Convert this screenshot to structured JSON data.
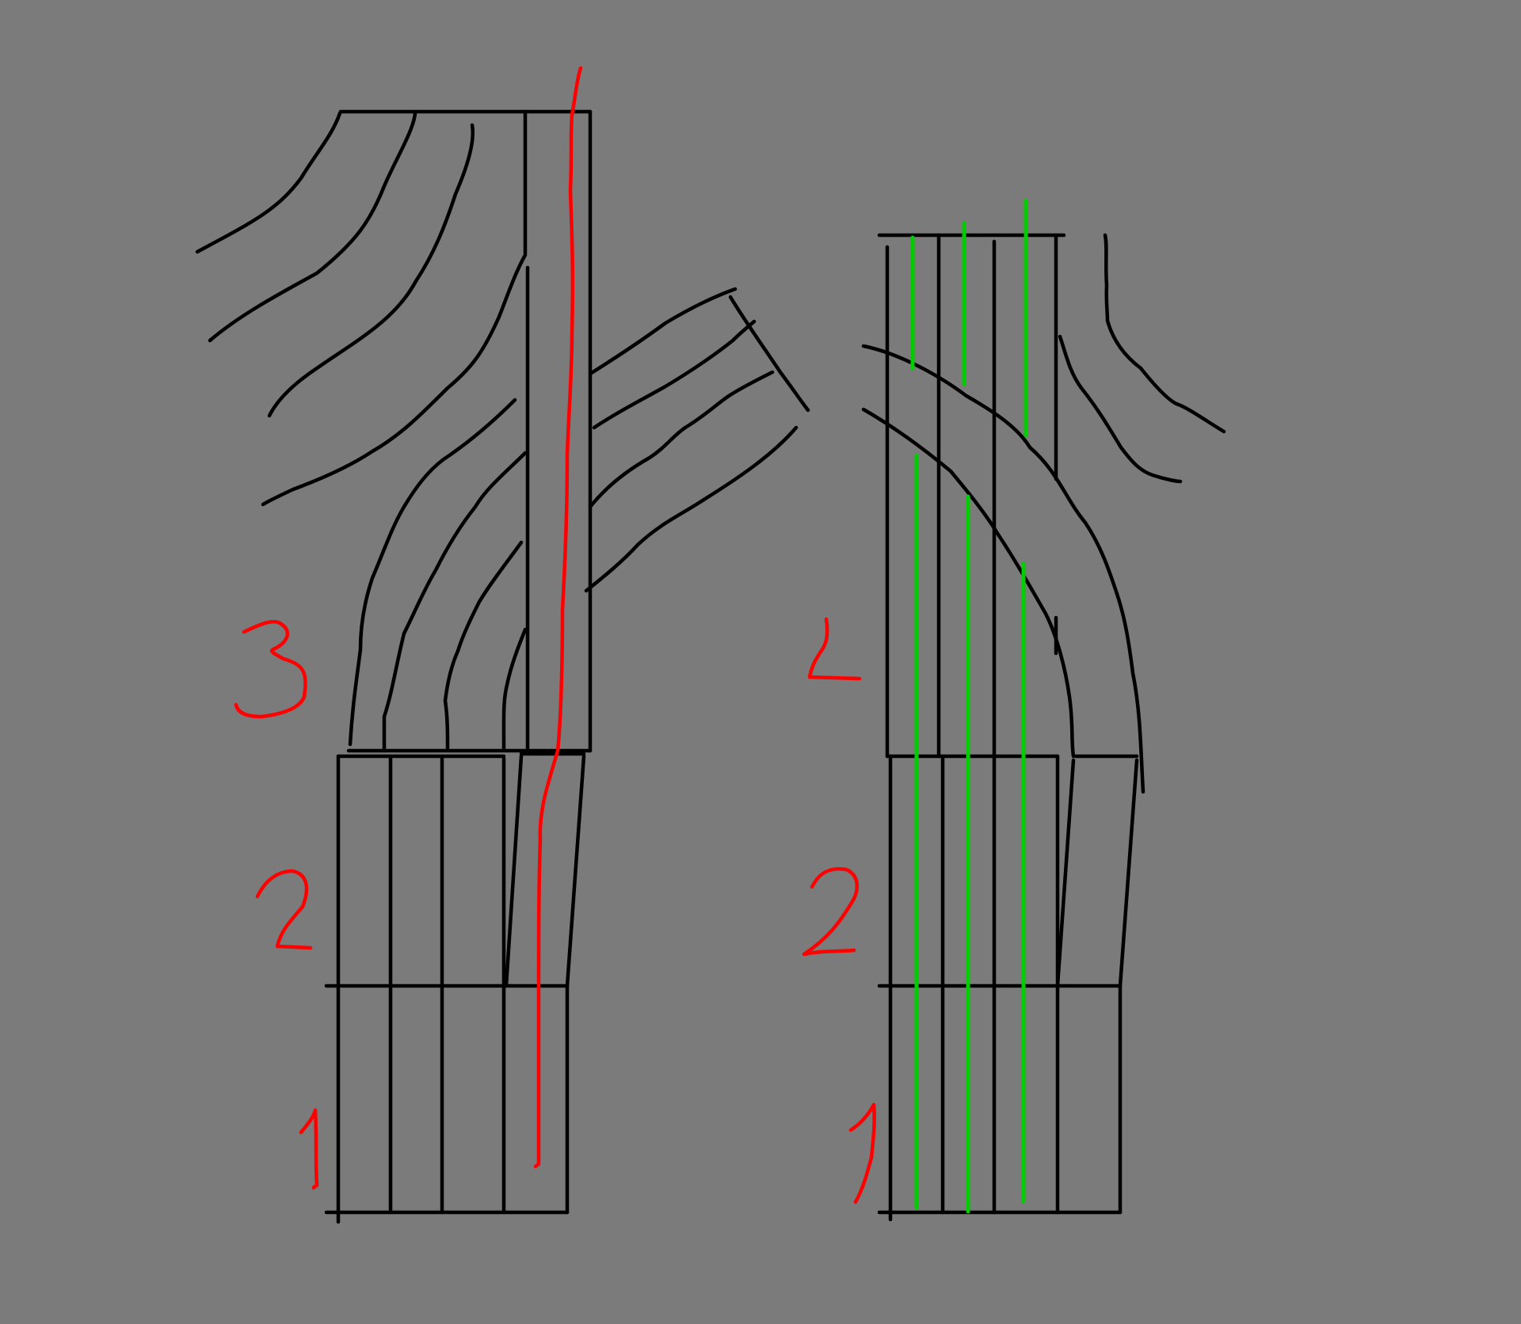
{
  "colors": {
    "background": "#7b7b7b",
    "ink": "#000000",
    "annotation": "#ff0000",
    "highlight": "#00cc00"
  },
  "left_sketch": {
    "labels": [
      "3",
      "2",
      "1"
    ]
  },
  "right_sketch": {
    "labels": [
      "L",
      "2",
      "1"
    ]
  }
}
